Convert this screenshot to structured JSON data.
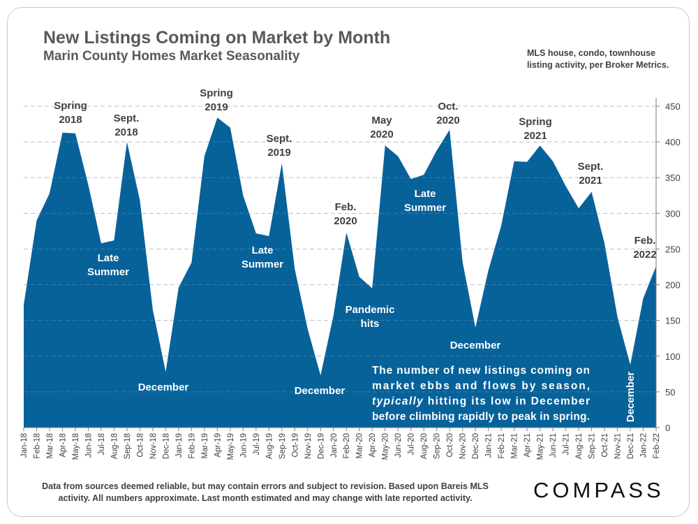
{
  "page": {
    "title": "New Listings Coming on Market by Month",
    "subtitle": "Marin County Homes Market Seasonality",
    "note_line1": "MLS house, condo, townhouse",
    "note_line2": "listing activity, per Broker Metrics.",
    "footer_line1": "Data from sources deemed reliable, but may contain errors and subject to revision. Based upon Bareis MLS",
    "footer_line2": "activity. All numbers approximate. Last month estimated and may change with late reported activity.",
    "logo": "COMPASS"
  },
  "colors": {
    "area": "#07629a",
    "gridline": "#6f8fab",
    "text_dark": "#404040",
    "text_light": "#ffffff"
  },
  "chart_data": {
    "type": "area",
    "title": "New Listings Coming on Market by Month",
    "xlabel": "",
    "ylabel": "",
    "ylim": [
      0,
      450
    ],
    "yticks": [
      0,
      50,
      100,
      150,
      200,
      250,
      300,
      350,
      400,
      450
    ],
    "grid": true,
    "categories": [
      "Jan-18",
      "Feb-18",
      "Mar-18",
      "Apr-18",
      "May-18",
      "Jun-18",
      "Jul-18",
      "Aug-18",
      "Sep-18",
      "Oct-18",
      "Nov-18",
      "Dec-18",
      "Jan-19",
      "Feb-19",
      "Mar-19",
      "Apr-19",
      "May-19",
      "Jun-19",
      "Jul-19",
      "Aug-19",
      "Sep-19",
      "Oct-19",
      "Nov-19",
      "Dec-19",
      "Jan-20",
      "Feb-20",
      "Mar-20",
      "Apr-20",
      "May-20",
      "Jun-20",
      "Jul-20",
      "Aug-20",
      "Sep-20",
      "Oct-20",
      "Nov-20",
      "Dec-20",
      "Jan-21",
      "Feb-21",
      "Mar-21",
      "Apr-21",
      "May-21",
      "Jun-21",
      "Jul-21",
      "Aug-21",
      "Sep-21",
      "Oct-21",
      "Nov-21",
      "Dec-21",
      "Jan-22",
      "Feb-22"
    ],
    "series": [
      {
        "name": "New Listings",
        "values": [
          172,
          290,
          328,
          413,
          412,
          340,
          258,
          262,
          400,
          318,
          165,
          78,
          196,
          231,
          380,
          434,
          420,
          325,
          272,
          268,
          370,
          222,
          138,
          73,
          157,
          273,
          211,
          195,
          395,
          380,
          348,
          354,
          388,
          417,
          232,
          140,
          220,
          283,
          373,
          372,
          395,
          373,
          338,
          307,
          330,
          258,
          155,
          88,
          181,
          226
        ]
      }
    ],
    "annotations": [
      {
        "text": [
          "Spring",
          "2018"
        ],
        "anchor": 3,
        "offset": 0,
        "color": "dark"
      },
      {
        "text": [
          "Sept.",
          "2018"
        ],
        "anchor": 8,
        "offset": 0,
        "color": "dark"
      },
      {
        "text": [
          "Late",
          "Summer"
        ],
        "anchor": 6,
        "offset": 0,
        "color": "light"
      },
      {
        "text": [
          "December"
        ],
        "anchor": 11,
        "offset": 0,
        "color": "light"
      },
      {
        "text": [
          "Spring",
          "2019"
        ],
        "anchor": 15,
        "offset": 0,
        "color": "dark"
      },
      {
        "text": [
          "Sept.",
          "2019"
        ],
        "anchor": 20,
        "offset": 0,
        "color": "dark"
      },
      {
        "text": [
          "Late",
          "Summer"
        ],
        "anchor": 18,
        "offset": 0,
        "color": "light"
      },
      {
        "text": [
          "December"
        ],
        "anchor": 23,
        "offset": 0,
        "color": "light"
      },
      {
        "text": [
          "Feb.",
          "2020"
        ],
        "anchor": 25,
        "offset": 0,
        "color": "dark"
      },
      {
        "text": [
          "Pandemic",
          "hits"
        ],
        "anchor": 26,
        "offset": 0,
        "color": "light"
      },
      {
        "text": [
          "May",
          "2020"
        ],
        "anchor": 28,
        "offset": 0,
        "color": "dark"
      },
      {
        "text": [
          "Oct.",
          "2020"
        ],
        "anchor": 33,
        "offset": 0,
        "color": "dark"
      },
      {
        "text": [
          "Late",
          "Summer"
        ],
        "anchor": 31,
        "offset": 0,
        "color": "light"
      },
      {
        "text": [
          "December"
        ],
        "anchor": 35,
        "offset": 0,
        "color": "light"
      },
      {
        "text": [
          "Spring",
          "2021"
        ],
        "anchor": 40,
        "offset": 0,
        "color": "dark"
      },
      {
        "text": [
          "Sept.",
          "2021"
        ],
        "anchor": 44,
        "offset": 0,
        "color": "dark"
      },
      {
        "text": [
          "December"
        ],
        "anchor": 47,
        "offset": 0,
        "color": "light",
        "rotated": true
      },
      {
        "text": [
          "Feb.",
          "2022"
        ],
        "anchor": 49,
        "offset": 0,
        "color": "dark"
      }
    ],
    "callout": [
      {
        "text": "The number of new listings coming on",
        "italic_prefix": ""
      },
      {
        "text": "market ebbs and flows by season,",
        "italic_prefix": ""
      },
      {
        "text": " hitting its low in December",
        "italic_prefix": "typically"
      },
      {
        "text": "before climbing rapidly to peak in  spring.",
        "italic_prefix": ""
      }
    ]
  }
}
